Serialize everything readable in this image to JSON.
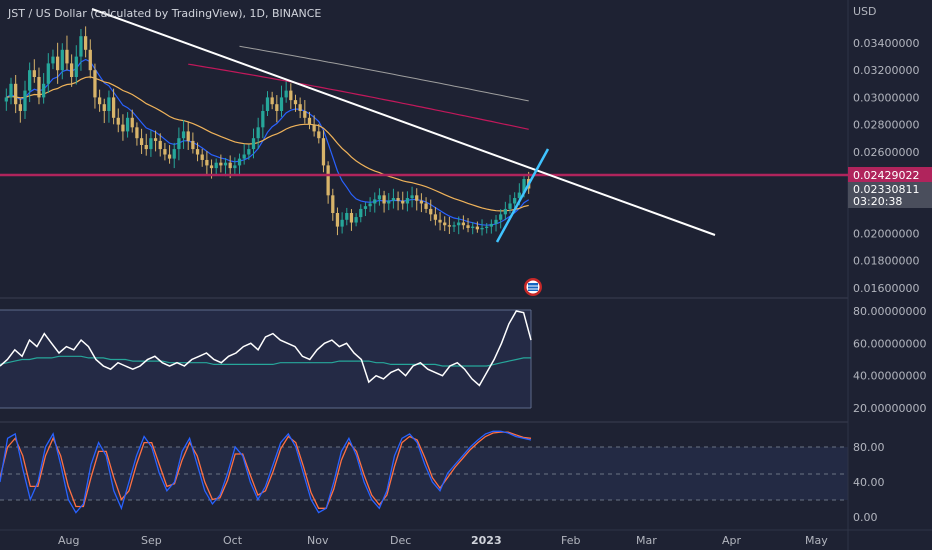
{
  "header": {
    "symbol_title": "JST / US Dollar (calculated by TradingView), 1D, BINANCE",
    "currency": "USD"
  },
  "price_axis": {
    "ticks": [
      "0.03400000",
      "0.03200000",
      "0.03000000",
      "0.02800000",
      "0.02600000",
      "0.02429022",
      "0.02330811",
      "0.02000000",
      "0.01800000",
      "0.01600000"
    ],
    "plain_ticks": [
      0.034,
      0.032,
      0.03,
      0.028,
      0.026,
      0.02,
      0.018,
      0.016
    ],
    "tick_labels": [
      "0.03400000",
      "0.03200000",
      "0.03000000",
      "0.02800000",
      "0.02600000",
      "0.02000000",
      "0.01800000",
      "0.01600000"
    ],
    "horizontal_level": {
      "label": "0.02429022",
      "value": 0.02429022,
      "color": "#b0245c"
    },
    "last_price": {
      "label": "0.02330811",
      "value": 0.02330811,
      "countdown": "03:20:38",
      "color": "#4a4e5c"
    }
  },
  "rsi_axis": {
    "tick_labels": [
      "80.00000000",
      "60.00000000",
      "40.00000000",
      "20.00000000"
    ],
    "tick_values": [
      80,
      60,
      40,
      20
    ]
  },
  "stoch_axis": {
    "tick_labels": [
      "80.00",
      "40.00",
      "0.00"
    ],
    "tick_values": [
      80,
      40,
      0
    ]
  },
  "time_axis": {
    "labels": [
      "Aug",
      "Sep",
      "Oct",
      "Nov",
      "Dec",
      "2023",
      "Feb",
      "Mar",
      "Apr",
      "May"
    ]
  },
  "colors": {
    "background": "#1e2233",
    "up": "#26a69a",
    "down": "#d8b46a",
    "ema_fast": "#2962ff",
    "ema_slow": "#f0b35a",
    "ma_red": "#c2185b",
    "ma_gray": "#9e9e9e",
    "trendline": "#ffffff",
    "rising_line": "#40c4ff",
    "rsi_line": "#ffffff",
    "rsi_signal": "#26a69a",
    "stoch_k": "#2962ff",
    "stoch_d": "#ff7043"
  },
  "chart_data": {
    "type": "candlestick",
    "title": "JST / US Dollar (calculated by TradingView), 1D, BINANCE",
    "ylabel": "USD",
    "ylim": [
      0.015,
      0.0355
    ],
    "x": "daily, late Jul 2022 to mid Jan 2023",
    "close_series": [
      0.03,
      0.031,
      0.0295,
      0.029,
      0.0305,
      0.032,
      0.0315,
      0.03,
      0.031,
      0.0325,
      0.033,
      0.032,
      0.0335,
      0.0325,
      0.0315,
      0.033,
      0.0345,
      0.0335,
      0.032,
      0.03,
      0.0295,
      0.029,
      0.03,
      0.0285,
      0.028,
      0.0275,
      0.0285,
      0.0278,
      0.027,
      0.0265,
      0.0262,
      0.027,
      0.0268,
      0.0262,
      0.0258,
      0.0255,
      0.0262,
      0.027,
      0.0275,
      0.0268,
      0.0262,
      0.0258,
      0.0254,
      0.025,
      0.0248,
      0.0252,
      0.025,
      0.0252,
      0.0248,
      0.025,
      0.0255,
      0.0258,
      0.0262,
      0.027,
      0.0278,
      0.029,
      0.03,
      0.0295,
      0.029,
      0.03,
      0.0305,
      0.0298,
      0.0295,
      0.029,
      0.0285,
      0.028,
      0.0275,
      0.027,
      0.025,
      0.0228,
      0.0215,
      0.0205,
      0.021,
      0.0215,
      0.0208,
      0.0212,
      0.0218,
      0.022,
      0.0222,
      0.0225,
      0.0228,
      0.0222,
      0.0224,
      0.0226,
      0.0224,
      0.0222,
      0.0226,
      0.0228,
      0.0224,
      0.0222,
      0.0218,
      0.0214,
      0.021,
      0.0208,
      0.0206,
      0.0205,
      0.0206,
      0.0208,
      0.0206,
      0.0204,
      0.0205,
      0.0203,
      0.0204,
      0.0205,
      0.0207,
      0.021,
      0.0214,
      0.0218,
      0.0222,
      0.0226,
      0.023,
      0.024,
      0.0233
    ],
    "lines": [
      {
        "name": "trendline",
        "points": [
          [
            "late Jul",
            0.0355
          ],
          [
            "mid Apr",
            0.0199
          ]
        ]
      },
      {
        "name": "horizontal level",
        "value": 0.02429022
      }
    ],
    "rsi": {
      "ylim": [
        15,
        85
      ],
      "values": [
        46,
        50,
        56,
        52,
        62,
        58,
        66,
        60,
        54,
        58,
        56,
        62,
        58,
        50,
        46,
        44,
        48,
        46,
        44,
        46,
        50,
        52,
        48,
        46,
        48,
        46,
        50,
        52,
        54,
        50,
        48,
        52,
        54,
        58,
        60,
        56,
        64,
        66,
        62,
        60,
        58,
        52,
        50,
        56,
        60,
        62,
        58,
        60,
        54,
        50,
        36,
        40,
        38,
        42,
        44,
        40,
        46,
        48,
        44,
        42,
        40,
        46,
        48,
        44,
        38,
        34,
        42,
        50,
        60,
        72,
        80,
        79,
        62
      ],
      "signal": [
        47,
        48,
        49,
        50,
        50,
        51,
        51,
        51,
        52,
        52,
        52,
        52,
        51,
        51,
        51,
        50,
        50,
        50,
        49,
        49,
        49,
        49,
        49,
        48,
        48,
        48,
        48,
        48,
        48,
        47,
        47,
        47,
        47,
        47,
        47,
        47,
        47,
        47,
        48,
        48,
        48,
        48,
        48,
        48,
        48,
        48,
        49,
        49,
        49,
        49,
        49,
        48,
        48,
        47,
        47,
        47,
        47,
        47,
        47,
        47,
        46,
        46,
        46,
        46,
        46,
        46,
        46,
        47,
        48,
        49,
        50,
        51,
        51
      ]
    },
    "stochastic": {
      "ylim": [
        -5,
        105
      ],
      "k": [
        40,
        90,
        95,
        55,
        20,
        40,
        80,
        95,
        60,
        20,
        5,
        15,
        60,
        85,
        70,
        30,
        10,
        40,
        70,
        92,
        80,
        50,
        30,
        40,
        75,
        90,
        60,
        30,
        15,
        25,
        50,
        80,
        70,
        40,
        20,
        35,
        60,
        85,
        95,
        80,
        50,
        20,
        5,
        10,
        40,
        75,
        90,
        70,
        40,
        20,
        10,
        30,
        70,
        90,
        95,
        85,
        60,
        40,
        30,
        50,
        60,
        70,
        80,
        88,
        95,
        98,
        98,
        96,
        92,
        90,
        88
      ],
      "d": [
        45,
        80,
        90,
        70,
        35,
        35,
        70,
        90,
        70,
        35,
        12,
        12,
        45,
        75,
        75,
        45,
        20,
        30,
        60,
        85,
        85,
        60,
        35,
        38,
        65,
        85,
        70,
        40,
        20,
        22,
        42,
        72,
        72,
        48,
        25,
        30,
        52,
        78,
        92,
        85,
        58,
        28,
        10,
        10,
        32,
        65,
        85,
        75,
        48,
        25,
        14,
        25,
        58,
        85,
        92,
        88,
        68,
        45,
        33,
        45,
        57,
        67,
        77,
        85,
        92,
        96,
        97,
        97,
        94,
        91,
        90
      ]
    }
  }
}
